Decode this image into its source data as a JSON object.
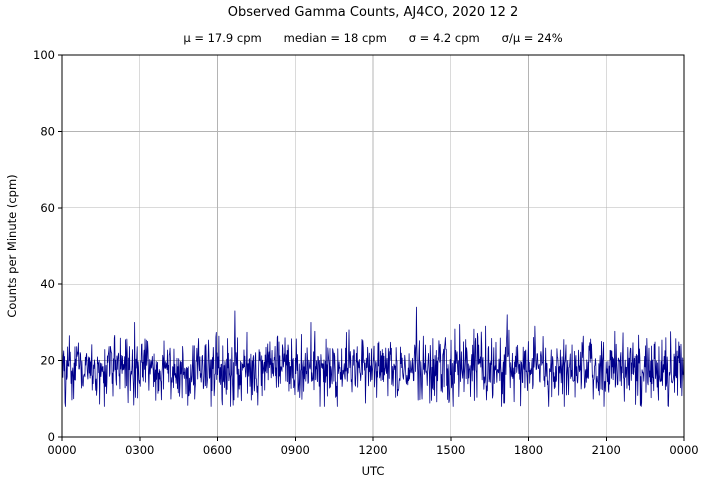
{
  "chart_data": {
    "type": "line",
    "title": "Observed Gamma Counts, AJ4CO, 2020 12 2",
    "subtitle": "μ = 17.9 cpm      median = 18 cpm      σ = 4.2 cpm      σ/μ = 24%",
    "stats": {
      "mu_cpm": 17.9,
      "median_cpm": 18,
      "sigma_cpm": 4.2,
      "sigma_over_mu_percent": 24
    },
    "xlabel": "UTC",
    "ylabel": "Counts per Minute (cpm)",
    "ylim": [
      0,
      100
    ],
    "yticks": [
      0,
      20,
      40,
      60,
      80,
      100
    ],
    "xtick_labels": [
      "0000",
      "0300",
      "0600",
      "0900",
      "1200",
      "1500",
      "1800",
      "2100",
      "0000"
    ],
    "x_span_minutes": 1440,
    "grid": true,
    "legend": false,
    "colors": {
      "series": "#00008b",
      "grid": "#b4b4b4",
      "axis": "#000000",
      "background": "#ffffff"
    },
    "series": [
      {
        "name": "observed gamma counts",
        "n_points": 1440,
        "mean": 17.9,
        "sigma": 4.2,
        "clip_low": 8,
        "clip_high": 30,
        "min_observed": 8,
        "max_observed": 34
      }
    ],
    "notable_peaks": [
      {
        "utc": "0640",
        "cpm": 33
      },
      {
        "utc": "1340",
        "cpm": 34
      },
      {
        "utc": "1710",
        "cpm": 32
      }
    ],
    "notable_dips": [
      {
        "utc": "0545",
        "cpm": 8
      },
      {
        "utc": "1455",
        "cpm": 9
      }
    ]
  }
}
